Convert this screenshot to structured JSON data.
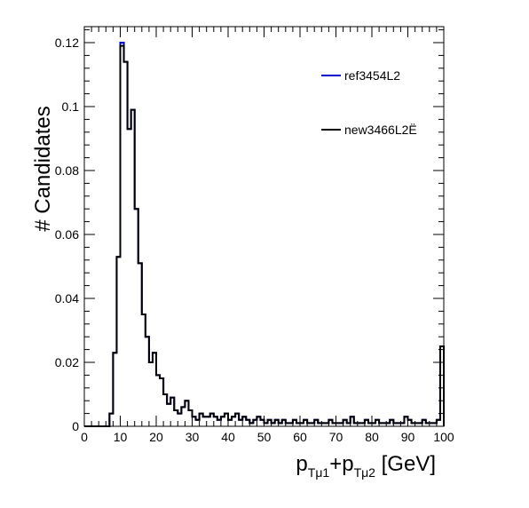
{
  "chart_data": {
    "type": "histogram",
    "xlabel": {
      "main1": "p",
      "sub1": "Tμ1",
      "plus": "+",
      "main2": "p",
      "sub2": "Tμ2",
      "unit": " [GeV]"
    },
    "ylabel": "# Candidates",
    "xlim": [
      0,
      100
    ],
    "ylim": [
      0,
      0.125
    ],
    "x_ticks": [
      "0",
      "10",
      "20",
      "30",
      "40",
      "50",
      "60",
      "70",
      "80",
      "90",
      "100"
    ],
    "y_ticks": [
      "0",
      "0.02",
      "0.04",
      "0.06",
      "0.08",
      "0.1",
      "0.12"
    ],
    "grid": false,
    "legend_position": "top-right",
    "bin_edges": [
      0,
      1,
      2,
      3,
      4,
      5,
      6,
      7,
      8,
      9,
      10,
      11,
      12,
      13,
      14,
      15,
      16,
      17,
      18,
      19,
      20,
      21,
      22,
      23,
      24,
      25,
      26,
      27,
      28,
      29,
      30,
      31,
      32,
      33,
      34,
      35,
      36,
      37,
      38,
      39,
      40,
      41,
      42,
      43,
      44,
      45,
      46,
      47,
      48,
      49,
      50,
      51,
      52,
      53,
      54,
      55,
      56,
      57,
      58,
      59,
      60,
      61,
      62,
      63,
      64,
      65,
      66,
      67,
      68,
      69,
      70,
      71,
      72,
      73,
      74,
      75,
      76,
      77,
      78,
      79,
      80,
      81,
      82,
      83,
      84,
      85,
      86,
      87,
      88,
      89,
      90,
      91,
      92,
      93,
      94,
      95,
      96,
      97,
      98,
      99,
      100
    ],
    "series": [
      {
        "name": "ref3454L2",
        "color": "#0000cc",
        "values": [
          0,
          0,
          0,
          0,
          0,
          0,
          0,
          0.004,
          0.023,
          0.053,
          0.12,
          0.114,
          0.093,
          0.099,
          0.068,
          0.051,
          0.035,
          0.028,
          0.02,
          0.023,
          0.016,
          0.015,
          0.01,
          0.007,
          0.009,
          0.005,
          0.004,
          0.006,
          0.008,
          0.005,
          0.003,
          0.002,
          0.004,
          0.003,
          0.003,
          0.004,
          0.003,
          0.002,
          0.003,
          0.004,
          0.002,
          0.003,
          0.004,
          0.002,
          0.003,
          0.002,
          0.001,
          0.002,
          0.003,
          0.002,
          0.001,
          0.002,
          0.001,
          0.002,
          0.001,
          0.002,
          0.001,
          0.001,
          0.002,
          0.001,
          0.001,
          0.002,
          0.001,
          0.001,
          0.002,
          0.001,
          0.001,
          0.001,
          0.002,
          0.001,
          0.001,
          0.001,
          0.002,
          0.001,
          0.003,
          0.001,
          0.001,
          0.001,
          0.002,
          0.001,
          0.001,
          0.002,
          0.001,
          0.001,
          0.001,
          0.002,
          0.001,
          0.001,
          0.001,
          0.003,
          0.002,
          0.001,
          0.001,
          0.001,
          0.002,
          0.001,
          0.001,
          0.001,
          0.002,
          0.025
        ]
      },
      {
        "name": "new3466L2Ë",
        "color": "#000000",
        "values": [
          0,
          0,
          0,
          0,
          0,
          0,
          0,
          0.004,
          0.023,
          0.053,
          0.119,
          0.114,
          0.093,
          0.099,
          0.068,
          0.051,
          0.035,
          0.028,
          0.02,
          0.023,
          0.016,
          0.015,
          0.01,
          0.007,
          0.009,
          0.005,
          0.004,
          0.006,
          0.008,
          0.005,
          0.003,
          0.002,
          0.004,
          0.003,
          0.003,
          0.004,
          0.003,
          0.002,
          0.003,
          0.004,
          0.002,
          0.003,
          0.004,
          0.002,
          0.003,
          0.002,
          0.001,
          0.002,
          0.003,
          0.002,
          0.001,
          0.002,
          0.001,
          0.002,
          0.001,
          0.002,
          0.001,
          0.001,
          0.002,
          0.001,
          0.001,
          0.002,
          0.001,
          0.001,
          0.002,
          0.001,
          0.001,
          0.001,
          0.002,
          0.001,
          0.001,
          0.001,
          0.002,
          0.001,
          0.003,
          0.001,
          0.001,
          0.001,
          0.002,
          0.001,
          0.001,
          0.002,
          0.001,
          0.001,
          0.001,
          0.002,
          0.001,
          0.001,
          0.001,
          0.003,
          0.002,
          0.001,
          0.001,
          0.001,
          0.002,
          0.001,
          0.001,
          0.001,
          0.002,
          0.025
        ]
      }
    ]
  }
}
